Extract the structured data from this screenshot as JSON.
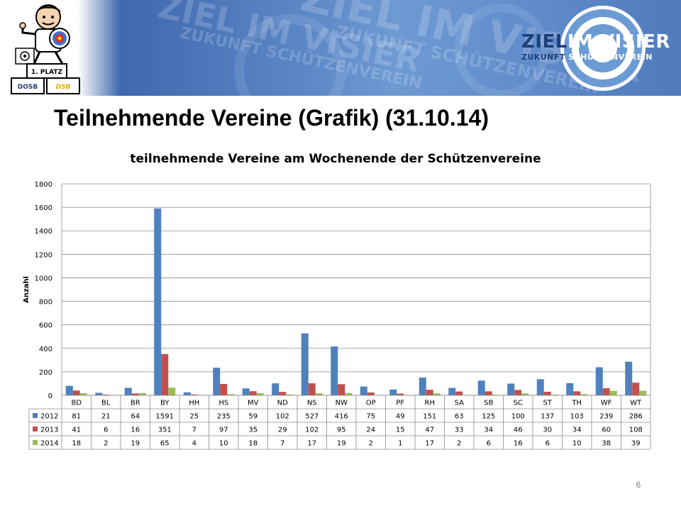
{
  "header": {
    "logo_main_left": "ZIEL",
    "logo_main_right": "IM VISIER",
    "logo_sub_left": "ZUKUNFT",
    "logo_sub_right": "SCHÜTZENVEREIN",
    "watermark_big": "ZIEL IM VISIER",
    "watermark_small": "ZUKUNFT SCHÜTZENVEREIN",
    "mascot_badge": "1. PLATZ",
    "mascot_logo_1": "DOSB",
    "mascot_logo_2": "DSB",
    "brand_color": "#3f68ae"
  },
  "page_title": "Teilnehmende Vereine (Grafik) (31.10.14)",
  "page_number": "6",
  "chart_data": {
    "type": "bar",
    "title": "teilnehmende Vereine am Wochenende der Schützenvereine",
    "xlabel": "",
    "ylabel": "Anzahl",
    "ylim": [
      0,
      1800
    ],
    "yticks": [
      0,
      200,
      400,
      600,
      800,
      1000,
      1200,
      1400,
      1600,
      1800
    ],
    "grid": "horizontal",
    "legend": "data-table",
    "categories": [
      "BD",
      "BL",
      "BR",
      "BY",
      "HH",
      "HS",
      "MV",
      "ND",
      "NS",
      "NW",
      "OP",
      "PF",
      "RH",
      "SA",
      "SB",
      "SC",
      "ST",
      "TH",
      "WF",
      "WT"
    ],
    "series": [
      {
        "name": "2012",
        "color": "#4f81bd",
        "values": [
          81,
          21,
          64,
          1591,
          25,
          235,
          59,
          102,
          527,
          416,
          75,
          49,
          151,
          63,
          125,
          100,
          137,
          103,
          239,
          286
        ]
      },
      {
        "name": "2013",
        "color": "#c0504d",
        "values": [
          41,
          6,
          16,
          351,
          7,
          97,
          35,
          29,
          102,
          95,
          24,
          15,
          47,
          33,
          34,
          46,
          30,
          34,
          60,
          108
        ]
      },
      {
        "name": "2014",
        "color": "#9bbb59",
        "values": [
          18,
          2,
          19,
          65,
          4,
          10,
          18,
          7,
          17,
          19,
          2,
          1,
          17,
          2,
          6,
          16,
          6,
          10,
          38,
          39
        ]
      }
    ]
  }
}
